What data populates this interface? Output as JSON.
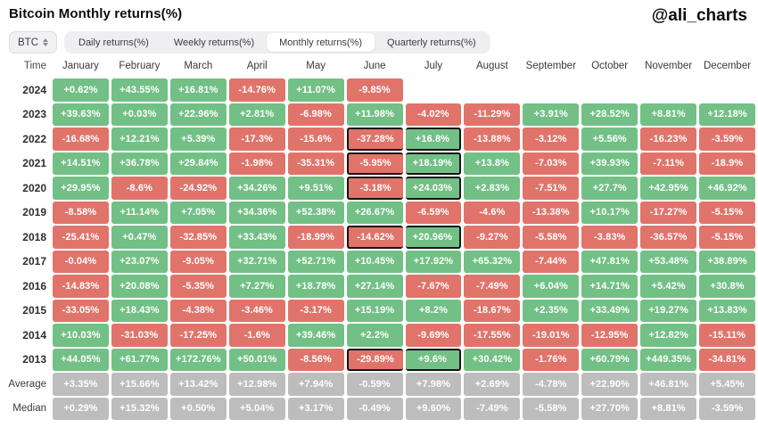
{
  "header": {
    "title": "Bitcoin Monthly returns(%)",
    "watermark": "@ali_charts"
  },
  "controls": {
    "coin_selector": {
      "value": "BTC",
      "icon": "up-down-chevrons-icon"
    },
    "tabs": [
      {
        "label": "Daily returns(%)",
        "active": false
      },
      {
        "label": "Weekly returns(%)",
        "active": false
      },
      {
        "label": "Monthly returns(%)",
        "active": true
      },
      {
        "label": "Quarterly returns(%)",
        "active": false
      }
    ]
  },
  "table": {
    "time_label": "Time",
    "months": [
      "January",
      "February",
      "March",
      "April",
      "May",
      "June",
      "July",
      "August",
      "September",
      "October",
      "November",
      "December"
    ],
    "highlight_note": "June-July pairs outlined in black",
    "rows": [
      {
        "label": "2024",
        "type": "year",
        "highlight": false,
        "values": [
          "+0.62%",
          "+43.55%",
          "+16.81%",
          "-14.76%",
          "+11.07%",
          "-9.85%",
          "",
          "",
          "",
          "",
          "",
          ""
        ]
      },
      {
        "label": "2023",
        "type": "year",
        "highlight": false,
        "values": [
          "+39.63%",
          "+0.03%",
          "+22.96%",
          "+2.81%",
          "-6.98%",
          "+11.98%",
          "-4.02%",
          "-11.29%",
          "+3.91%",
          "+28.52%",
          "+8.81%",
          "+12.18%"
        ]
      },
      {
        "label": "2022",
        "type": "year",
        "highlight": true,
        "values": [
          "-16.68%",
          "+12.21%",
          "+5.39%",
          "-17.3%",
          "-15.6%",
          "-37.28%",
          "+16.8%",
          "-13.88%",
          "-3.12%",
          "+5.56%",
          "-16.23%",
          "-3.59%"
        ]
      },
      {
        "label": "2021",
        "type": "year",
        "highlight": true,
        "values": [
          "+14.51%",
          "+36.78%",
          "+29.84%",
          "-1.98%",
          "-35.31%",
          "-5.95%",
          "+18.19%",
          "+13.8%",
          "-7.03%",
          "+39.93%",
          "-7.11%",
          "-18.9%"
        ]
      },
      {
        "label": "2020",
        "type": "year",
        "highlight": true,
        "values": [
          "+29.95%",
          "-8.6%",
          "-24.92%",
          "+34.26%",
          "+9.51%",
          "-3.18%",
          "+24.03%",
          "+2.83%",
          "-7.51%",
          "+27.7%",
          "+42.95%",
          "+46.92%"
        ]
      },
      {
        "label": "2019",
        "type": "year",
        "highlight": false,
        "values": [
          "-8.58%",
          "+11.14%",
          "+7.05%",
          "+34.36%",
          "+52.38%",
          "+26.67%",
          "-6.59%",
          "-4.6%",
          "-13.38%",
          "+10.17%",
          "-17.27%",
          "-5.15%"
        ]
      },
      {
        "label": "2018",
        "type": "year",
        "highlight": true,
        "values": [
          "-25.41%",
          "+0.47%",
          "-32.85%",
          "+33.43%",
          "-18.99%",
          "-14.62%",
          "+20.96%",
          "-9.27%",
          "-5.58%",
          "-3.83%",
          "-36.57%",
          "-5.15%"
        ]
      },
      {
        "label": "2017",
        "type": "year",
        "highlight": false,
        "values": [
          "-0.04%",
          "+23.07%",
          "-9.05%",
          "+32.71%",
          "+52.71%",
          "+10.45%",
          "+17.92%",
          "+65.32%",
          "-7.44%",
          "+47.81%",
          "+53.48%",
          "+38.89%"
        ]
      },
      {
        "label": "2016",
        "type": "year",
        "highlight": false,
        "values": [
          "-14.83%",
          "+20.08%",
          "-5.35%",
          "+7.27%",
          "+18.78%",
          "+27.14%",
          "-7.67%",
          "-7.49%",
          "+6.04%",
          "+14.71%",
          "+5.42%",
          "+30.8%"
        ]
      },
      {
        "label": "2015",
        "type": "year",
        "highlight": false,
        "values": [
          "-33.05%",
          "+18.43%",
          "-4.38%",
          "-3.46%",
          "-3.17%",
          "+15.19%",
          "+8.2%",
          "-18.67%",
          "+2.35%",
          "+33.49%",
          "+19.27%",
          "+13.83%"
        ]
      },
      {
        "label": "2014",
        "type": "year",
        "highlight": false,
        "values": [
          "+10.03%",
          "-31.03%",
          "-17.25%",
          "-1.6%",
          "+39.46%",
          "+2.2%",
          "-9.69%",
          "-17.55%",
          "-19.01%",
          "-12.95%",
          "+12.82%",
          "-15.11%"
        ]
      },
      {
        "label": "2013",
        "type": "year",
        "highlight": true,
        "values": [
          "+44.05%",
          "+61.77%",
          "+172.76%",
          "+50.01%",
          "-8.56%",
          "-29.89%",
          "+9.6%",
          "+30.42%",
          "-1.76%",
          "+60.79%",
          "+449.35%",
          "-34.81%"
        ]
      },
      {
        "label": "Average",
        "type": "summary",
        "highlight": false,
        "values": [
          "+3.35%",
          "+15.66%",
          "+13.42%",
          "+12.98%",
          "+7.94%",
          "-0.59%",
          "+7.98%",
          "+2.69%",
          "-4.78%",
          "+22.90%",
          "+46.81%",
          "+5.45%"
        ]
      },
      {
        "label": "Median",
        "type": "summary",
        "highlight": false,
        "values": [
          "+0.29%",
          "+15.32%",
          "+0.50%",
          "+5.04%",
          "+3.17%",
          "-0.49%",
          "+9.60%",
          "-7.49%",
          "-5.58%",
          "+27.70%",
          "+8.81%",
          "-3.59%"
        ]
      }
    ]
  },
  "colors": {
    "positive": "#72c086",
    "negative": "#e0746b",
    "summary": "#bdbdbd",
    "highlight_border": "#141414",
    "tab_bg": "#efeff1",
    "tab_active_bg": "#ffffff"
  },
  "chart_data": {
    "type": "heatmap",
    "title": "Bitcoin Monthly returns(%)",
    "unit": "%",
    "columns": [
      "January",
      "February",
      "March",
      "April",
      "May",
      "June",
      "July",
      "August",
      "September",
      "October",
      "November",
      "December"
    ],
    "rows": [
      "2024",
      "2023",
      "2022",
      "2021",
      "2020",
      "2019",
      "2018",
      "2017",
      "2016",
      "2015",
      "2014",
      "2013",
      "Average",
      "Median"
    ],
    "values": [
      [
        0.62,
        43.55,
        16.81,
        -14.76,
        11.07,
        -9.85,
        null,
        null,
        null,
        null,
        null,
        null
      ],
      [
        39.63,
        0.03,
        22.96,
        2.81,
        -6.98,
        11.98,
        -4.02,
        -11.29,
        3.91,
        28.52,
        8.81,
        12.18
      ],
      [
        -16.68,
        12.21,
        5.39,
        -17.3,
        -15.6,
        -37.28,
        16.8,
        -13.88,
        -3.12,
        5.56,
        -16.23,
        -3.59
      ],
      [
        14.51,
        36.78,
        29.84,
        -1.98,
        -35.31,
        -5.95,
        18.19,
        13.8,
        -7.03,
        39.93,
        -7.11,
        -18.9
      ],
      [
        29.95,
        -8.6,
        -24.92,
        34.26,
        9.51,
        -3.18,
        24.03,
        2.83,
        -7.51,
        27.7,
        42.95,
        46.92
      ],
      [
        -8.58,
        11.14,
        7.05,
        34.36,
        52.38,
        26.67,
        -6.59,
        -4.6,
        -13.38,
        10.17,
        -17.27,
        -5.15
      ],
      [
        -25.41,
        0.47,
        -32.85,
        33.43,
        -18.99,
        -14.62,
        20.96,
        -9.27,
        -5.58,
        -3.83,
        -36.57,
        -5.15
      ],
      [
        -0.04,
        23.07,
        -9.05,
        32.71,
        52.71,
        10.45,
        17.92,
        65.32,
        -7.44,
        47.81,
        53.48,
        38.89
      ],
      [
        -14.83,
        20.08,
        -5.35,
        7.27,
        18.78,
        27.14,
        -7.67,
        -7.49,
        6.04,
        14.71,
        5.42,
        30.8
      ],
      [
        -33.05,
        18.43,
        -4.38,
        -3.46,
        -3.17,
        15.19,
        8.2,
        -18.67,
        2.35,
        33.49,
        19.27,
        13.83
      ],
      [
        10.03,
        -31.03,
        -17.25,
        -1.6,
        39.46,
        2.2,
        -9.69,
        -17.55,
        -19.01,
        -12.95,
        12.82,
        -15.11
      ],
      [
        44.05,
        61.77,
        172.76,
        50.01,
        -8.56,
        -29.89,
        9.6,
        30.42,
        -1.76,
        60.79,
        449.35,
        -34.81
      ],
      [
        3.35,
        15.66,
        13.42,
        12.98,
        7.94,
        -0.59,
        7.98,
        2.69,
        -4.78,
        22.9,
        46.81,
        5.45
      ],
      [
        0.29,
        15.32,
        0.5,
        5.04,
        3.17,
        -0.49,
        9.6,
        -7.49,
        -5.58,
        27.7,
        8.81,
        -3.59
      ]
    ],
    "color_coding": {
      "positive": "green",
      "negative": "red",
      "summary_rows": "gray"
    },
    "annotations": "Black outlines around June+July cell pairs for 2022, 2021, 2020, 2018, 2013",
    "legend": "none",
    "grid": "off"
  }
}
